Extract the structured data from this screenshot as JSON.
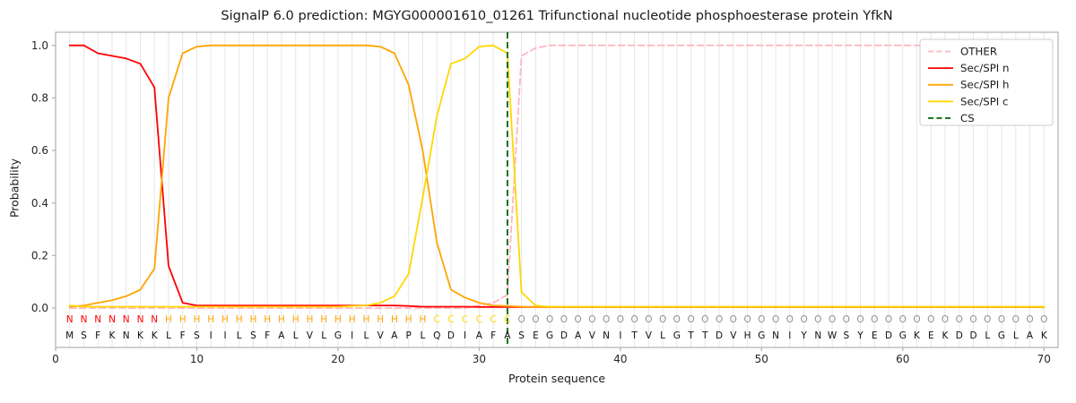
{
  "chart_data": {
    "type": "line",
    "title": "SignalP 6.0 prediction: MGYG000001610_01261 Trifunctional nucleotide phosphoesterase protein YfkN",
    "xlabel": "Protein sequence",
    "ylabel": "Probability",
    "xlim": [
      0,
      71
    ],
    "ylim": [
      -0.15,
      1.05
    ],
    "x_start": 1,
    "xticks": [
      0,
      10,
      20,
      30,
      40,
      50,
      60,
      70
    ],
    "yticks": [
      0,
      0.2,
      0.4,
      0.6,
      0.8,
      1
    ],
    "grid": "vertical-per-residue",
    "legend_position": "upper right",
    "sequence": "MSFKNKKLFSIILSFALVLGILVAPLQDIAFASEGDAVNITVLGTTDVHGNIYNWSYEDGKEKDDLGLAK",
    "regions": "NNNNNNNHHHHHHHHHHHHHHHHHHHCCCCCCOOOOOOOOOOOOOOOOOOOOOOOOOOOOOOOOOOOOOO",
    "region_colors": {
      "N": "#ff0000",
      "H": "#ffa500",
      "C": "#ffd700",
      "O": "#909090"
    },
    "colors": {
      "grid": "#e6e6e6",
      "frame": "#b0b0b0",
      "tick_text": "#262626",
      "seq_text": "#111111"
    },
    "cs": {
      "label": "CS",
      "position": 32,
      "color": "#006400"
    },
    "series": [
      {
        "name": "OTHER",
        "color": "#ffb6c1",
        "dash": true,
        "values": [
          0,
          0,
          0,
          0,
          0,
          0,
          0,
          0,
          0,
          0,
          0,
          0,
          0,
          0,
          0,
          0,
          0,
          0,
          0,
          0,
          0,
          0,
          0,
          0,
          0,
          0,
          0,
          0,
          0,
          0.01,
          0.02,
          0.05,
          0.96,
          0.99,
          1,
          1,
          1,
          1,
          1,
          1,
          1,
          1,
          1,
          1,
          1,
          1,
          1,
          1,
          1,
          1,
          1,
          1,
          1,
          1,
          1,
          1,
          1,
          1,
          1,
          1,
          1,
          1,
          1,
          1,
          1,
          1,
          1,
          1,
          1,
          1
        ]
      },
      {
        "name": "Sec/SPI n",
        "color": "#ff0000",
        "dash": false,
        "values": [
          1,
          1,
          0.97,
          0.96,
          0.95,
          0.93,
          0.84,
          0.16,
          0.02,
          0.01,
          0.01,
          0.01,
          0.01,
          0.01,
          0.01,
          0.01,
          0.01,
          0.01,
          0.01,
          0.01,
          0.01,
          0.01,
          0.01,
          0.01,
          0.008,
          0.005,
          0.005,
          0.005,
          0.005,
          0.004,
          0.004,
          0.004,
          0.004,
          0.004,
          0.004,
          0.004,
          0.004,
          0.004,
          0.004,
          0.004,
          0.004,
          0.004,
          0.004,
          0.004,
          0.004,
          0.004,
          0.004,
          0.004,
          0.004,
          0.004,
          0.004,
          0.004,
          0.004,
          0.004,
          0.004,
          0.004,
          0.004,
          0.004,
          0.004,
          0.004,
          0.004,
          0.004,
          0.004,
          0.004,
          0.004,
          0.004,
          0.004,
          0.004,
          0.004,
          0.004
        ]
      },
      {
        "name": "Sec/SPI h",
        "color": "#ffa500",
        "dash": false,
        "values": [
          0.005,
          0.01,
          0.02,
          0.03,
          0.045,
          0.07,
          0.15,
          0.8,
          0.97,
          0.995,
          1,
          1,
          1,
          1,
          1,
          1,
          1,
          1,
          1,
          1,
          1,
          1,
          0.995,
          0.97,
          0.85,
          0.6,
          0.25,
          0.07,
          0.04,
          0.02,
          0.01,
          0.008,
          0.005,
          0.004,
          0.004,
          0.004,
          0.004,
          0.004,
          0.004,
          0.004,
          0.004,
          0.004,
          0.004,
          0.004,
          0.004,
          0.004,
          0.004,
          0.004,
          0.004,
          0.004,
          0.004,
          0.004,
          0.004,
          0.004,
          0.004,
          0.004,
          0.004,
          0.004,
          0.004,
          0.004,
          0.004,
          0.004,
          0.004,
          0.004,
          0.004,
          0.004,
          0.004,
          0.004,
          0.004,
          0.004
        ]
      },
      {
        "name": "Sec/SPI c",
        "color": "#ffd700",
        "dash": false,
        "values": [
          0.01,
          0.005,
          0.005,
          0.005,
          0.005,
          0.005,
          0.005,
          0.005,
          0.005,
          0.005,
          0.005,
          0.005,
          0.005,
          0.005,
          0.005,
          0.005,
          0.005,
          0.005,
          0.005,
          0.005,
          0.008,
          0.01,
          0.02,
          0.045,
          0.13,
          0.42,
          0.73,
          0.93,
          0.95,
          0.995,
          1,
          0.97,
          0.06,
          0.01,
          0.005,
          0.005,
          0.005,
          0.005,
          0.005,
          0.005,
          0.005,
          0.005,
          0.005,
          0.005,
          0.005,
          0.005,
          0.005,
          0.005,
          0.005,
          0.005,
          0.005,
          0.005,
          0.005,
          0.005,
          0.005,
          0.005,
          0.005,
          0.005,
          0.005,
          0.005,
          0.005,
          0.005,
          0.005,
          0.005,
          0.005,
          0.005,
          0.005,
          0.005,
          0.005,
          0.005
        ]
      }
    ]
  }
}
